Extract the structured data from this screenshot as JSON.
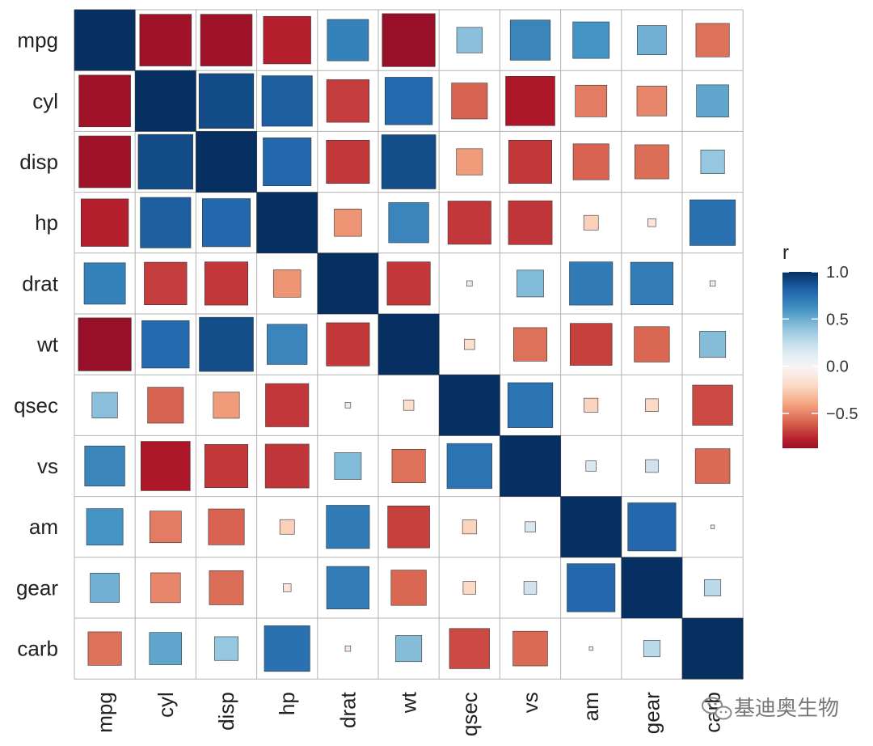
{
  "chart_data": {
    "type": "heatmap",
    "variables": [
      "mpg",
      "cyl",
      "disp",
      "hp",
      "drat",
      "wt",
      "qsec",
      "vs",
      "am",
      "gear",
      "carb"
    ],
    "matrix": [
      [
        1.0,
        -0.85,
        -0.85,
        -0.78,
        0.68,
        -0.87,
        0.42,
        0.66,
        0.6,
        0.48,
        -0.55
      ],
      [
        -0.85,
        1.0,
        0.9,
        0.83,
        -0.7,
        0.78,
        -0.59,
        -0.81,
        -0.52,
        -0.49,
        0.53
      ],
      [
        -0.85,
        0.9,
        1.0,
        0.79,
        -0.71,
        0.89,
        -0.43,
        -0.71,
        -0.59,
        -0.56,
        0.39
      ],
      [
        -0.78,
        0.83,
        0.79,
        1.0,
        -0.45,
        0.66,
        -0.71,
        -0.72,
        -0.24,
        -0.13,
        0.75
      ],
      [
        0.68,
        -0.7,
        -0.71,
        -0.45,
        1.0,
        -0.71,
        0.09,
        0.44,
        0.71,
        0.7,
        -0.09
      ],
      [
        -0.87,
        0.78,
        0.89,
        0.66,
        -0.71,
        1.0,
        -0.17,
        -0.55,
        -0.69,
        -0.58,
        0.43
      ],
      [
        0.42,
        -0.59,
        -0.43,
        -0.71,
        0.09,
        -0.17,
        1.0,
        0.74,
        -0.23,
        -0.21,
        -0.66
      ],
      [
        0.66,
        -0.81,
        -0.71,
        -0.72,
        0.44,
        -0.55,
        0.74,
        1.0,
        0.17,
        0.21,
        -0.57
      ],
      [
        0.6,
        -0.52,
        -0.59,
        -0.24,
        0.71,
        -0.69,
        -0.23,
        0.17,
        1.0,
        0.79,
        0.06
      ],
      [
        0.48,
        -0.49,
        -0.56,
        -0.13,
        0.7,
        -0.58,
        -0.21,
        0.21,
        0.79,
        1.0,
        0.27
      ],
      [
        -0.55,
        0.53,
        0.39,
        0.75,
        -0.09,
        0.43,
        -0.66,
        -0.57,
        0.06,
        0.27,
        1.0
      ]
    ],
    "legend": {
      "title": "r",
      "ticks": [
        1.0,
        0.5,
        0.0,
        -0.5
      ],
      "tick_labels": [
        "1.0",
        "0.5",
        "0.0",
        "−0.5"
      ],
      "range": [
        -0.87,
        1.0
      ],
      "placement": "right"
    },
    "color_scale": [
      "#67001F",
      "#B2182B",
      "#D6604D",
      "#F4A582",
      "#FDDBC7",
      "#F7F7F7",
      "#D1E5F0",
      "#92C5DE",
      "#4393C3",
      "#2166AC",
      "#053061"
    ],
    "grid": true
  },
  "watermark": {
    "text": "基迪奥生物",
    "icon": "wechat-icon"
  }
}
